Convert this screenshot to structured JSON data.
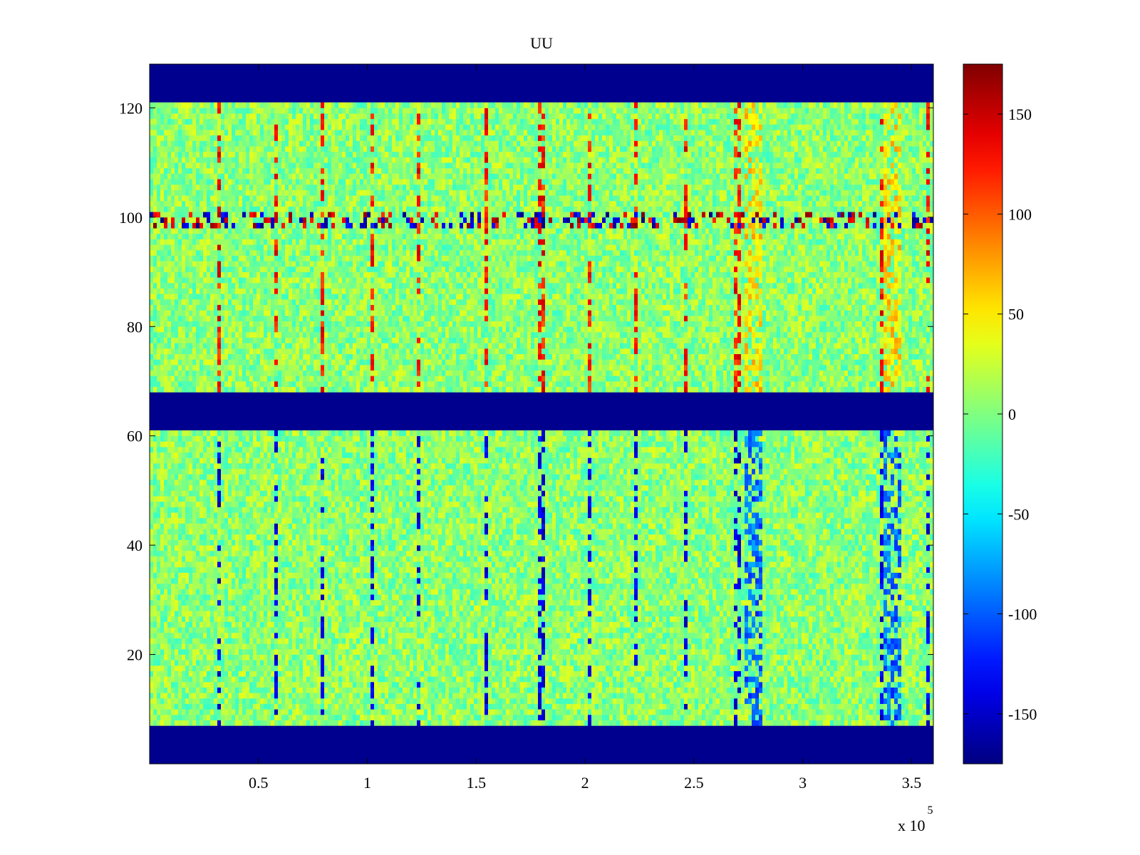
{
  "chart_data": {
    "type": "heatmap",
    "title": "UU",
    "xlabel": "",
    "ylabel": "",
    "x_exponent_label": "x 10",
    "x_exponent_power": "5",
    "xlim": [
      0,
      3.6
    ],
    "ylim": [
      0,
      128
    ],
    "x_ticks": [
      0.5,
      1,
      1.5,
      2,
      2.5,
      3,
      3.5
    ],
    "x_tick_labels": [
      "0.5",
      "1",
      "1.5",
      "2",
      "2.5",
      "3",
      "3.5"
    ],
    "y_ticks": [
      20,
      40,
      60,
      80,
      100,
      120
    ],
    "y_tick_labels": [
      "20",
      "40",
      "60",
      "80",
      "100",
      "120"
    ],
    "colorbar": {
      "colormap": "jet",
      "clim": [
        -175,
        175
      ],
      "ticks": [
        -150,
        -100,
        -50,
        0,
        50,
        100,
        150
      ],
      "tick_labels": [
        "-150",
        "-100",
        "-50",
        "0",
        "50",
        "100",
        "150"
      ]
    },
    "background_value": -175,
    "empty_row_bands": [
      [
        0,
        7
      ],
      [
        61,
        68
      ],
      [
        121,
        128
      ]
    ],
    "data_row_bands": [
      [
        7,
        61
      ],
      [
        68,
        121
      ]
    ],
    "base_noise": {
      "mean": 5,
      "spread": 30
    },
    "high_row_band": {
      "rows": [
        98,
        101
      ],
      "range": [
        -175,
        175
      ]
    },
    "vertical_streak_x": [
      0.32,
      0.58,
      0.8,
      1.02,
      1.24,
      1.54,
      1.8,
      2.02,
      2.24,
      2.46,
      2.7,
      3.37,
      3.57
    ],
    "event_columns": [
      {
        "x_range": [
          2.73,
          2.82
        ],
        "upper_value": 55,
        "lower_value": -95
      },
      {
        "x_range": [
          3.37,
          3.46
        ],
        "upper_value": 55,
        "lower_value": -95
      }
    ]
  }
}
